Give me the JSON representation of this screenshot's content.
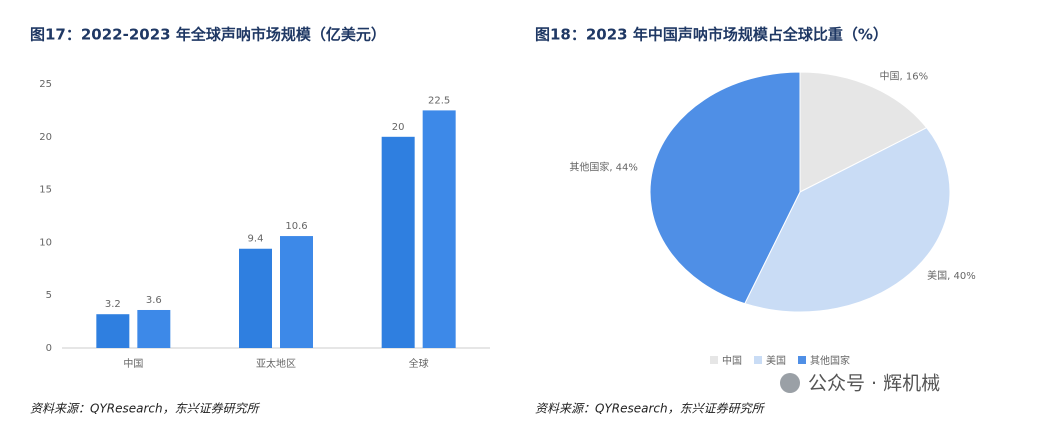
{
  "chart_data": [
    {
      "type": "bar",
      "title": "图17：2022-2023 年全球声呐市场规模（亿美元）",
      "categories": [
        "中国",
        "亚太地区",
        "全球"
      ],
      "series": [
        {
          "color": "#2f7fe0",
          "values": [
            3.2,
            9.4,
            20
          ]
        },
        {
          "color": "#3d89e8",
          "values": [
            3.6,
            10.6,
            22.5
          ]
        }
      ],
      "ylim": [
        0,
        25
      ],
      "yticks": [
        0,
        5,
        10,
        15,
        20,
        25
      ],
      "grid": false,
      "source": "资料来源：QYResearch，东兴证券研究所"
    },
    {
      "type": "pie",
      "title": "图18：2023 年中国声呐市场规模占全球比重（%）",
      "categories": [
        "中国",
        "美国",
        "其他国家"
      ],
      "values": [
        16,
        40,
        44
      ],
      "value_labels": [
        "中国, 16%",
        "美国, 40%",
        "其他国家, 44%"
      ],
      "colors": [
        "#e6e6e6",
        "#c9dcf5",
        "#4f8fe6"
      ],
      "legend": "bottom",
      "source": "资料来源：QYResearch，东兴证券研究所"
    }
  ],
  "badge": "公众号 · 辉机械"
}
